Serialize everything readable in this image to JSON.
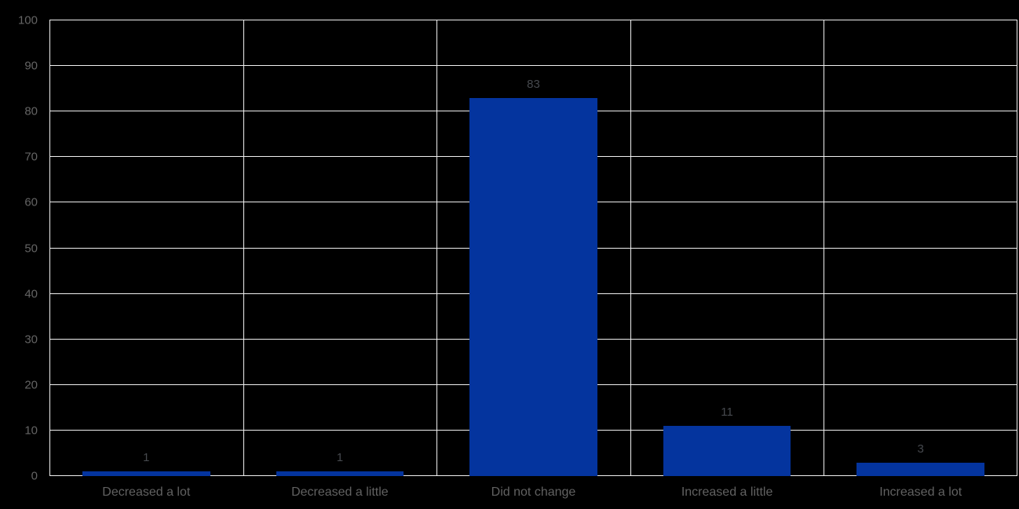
{
  "chart_data": {
    "type": "bar",
    "categories": [
      "Decreased a lot",
      "Decreased a little",
      "Did not change",
      "Increased a little",
      "Increased a lot"
    ],
    "values": [
      1,
      1,
      83,
      11,
      3
    ],
    "data_labels": [
      "1",
      "1",
      "83",
      "11",
      "3"
    ],
    "title": "",
    "xlabel": "",
    "ylabel": "",
    "ylim": [
      0,
      100
    ],
    "yticks": [
      0,
      10,
      20,
      30,
      40,
      50,
      60,
      70,
      80,
      90,
      100
    ],
    "grid": true,
    "legend": false,
    "bar_width_fraction": 0.66,
    "colors": {
      "bar": "#04349E",
      "grid": "#F0F0F0",
      "background": "#000000",
      "tick_label": "#646464",
      "category_label": "#616161",
      "data_label": "#46494E"
    }
  }
}
